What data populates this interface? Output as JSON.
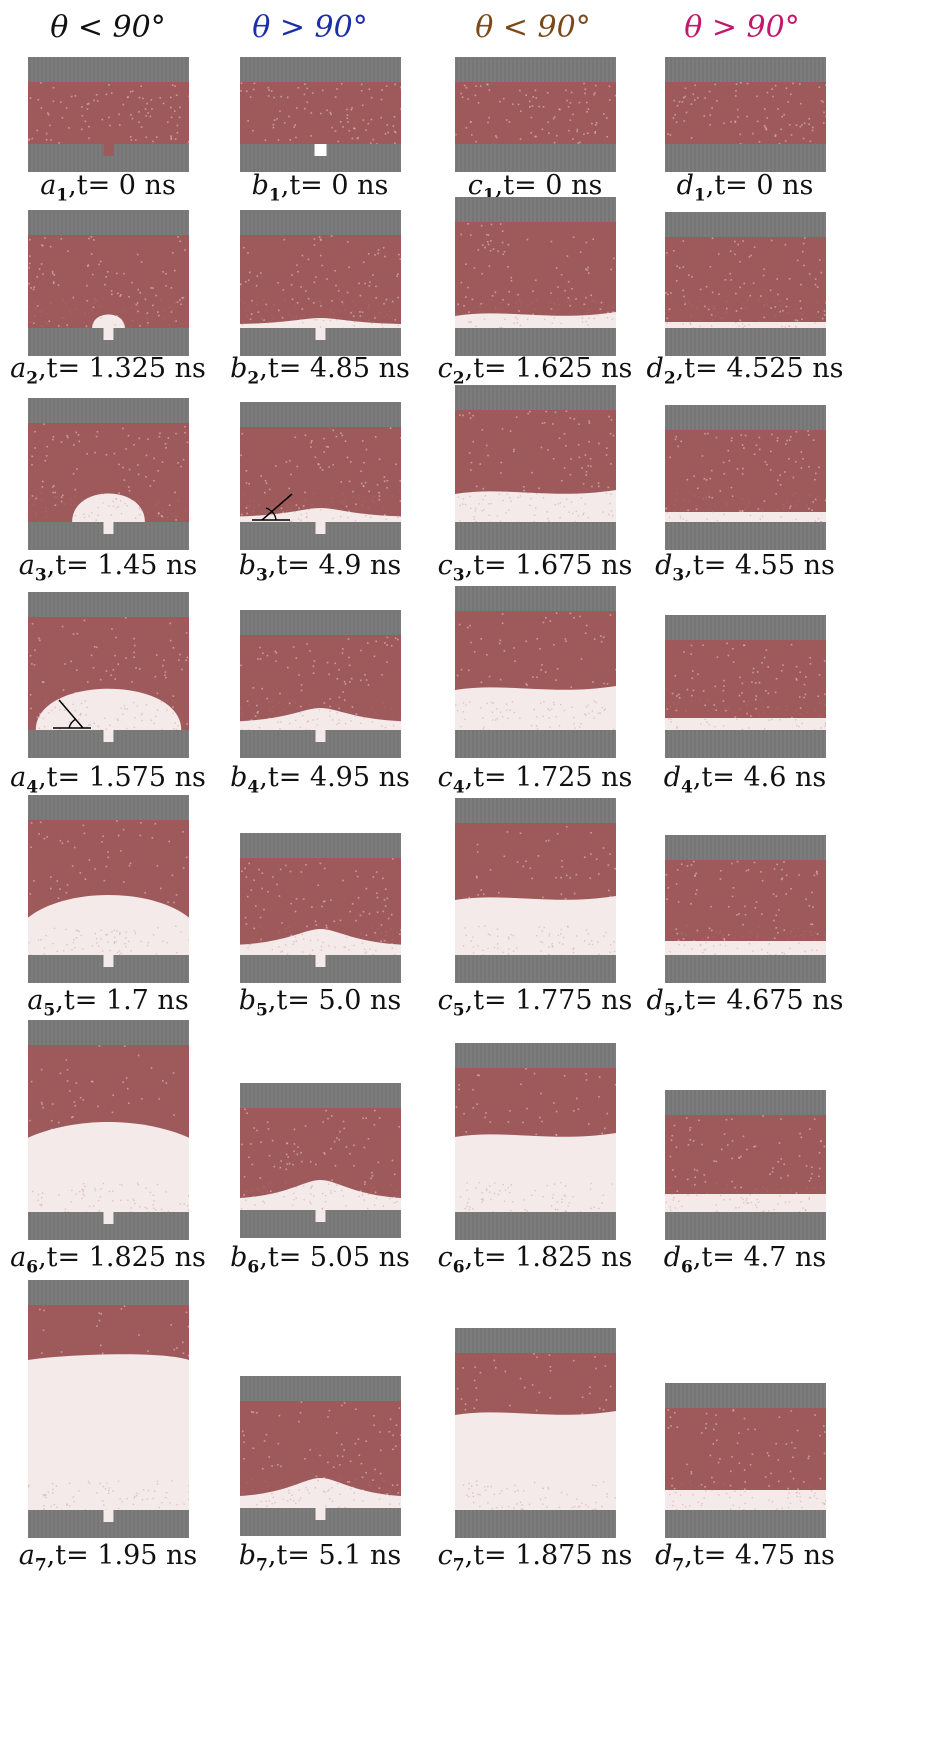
{
  "columns": [
    {
      "header": "θ < 90°",
      "color": "#111111"
    },
    {
      "header": "θ > 90°",
      "color": "#1a2fa8"
    },
    {
      "header": "θ < 90°",
      "color": "#7a4a1a"
    },
    {
      "header": "θ > 90°",
      "color": "#c2186b"
    }
  ],
  "colors": {
    "wall": "#7c7c7c",
    "liquid": "#9e5a5b",
    "vapor": "#f5eaea"
  },
  "panels": [
    {
      "letter": "a",
      "index": "1",
      "time": "t= 0 ns"
    },
    {
      "letter": "b",
      "index": "1",
      "time": "t= 0 ns"
    },
    {
      "letter": "c",
      "index": "1",
      "time": "t= 0 ns"
    },
    {
      "letter": "d",
      "index": "1",
      "time": "t= 0 ns"
    },
    {
      "letter": "a",
      "index": "2",
      "time": "t= 1.325 ns"
    },
    {
      "letter": "b",
      "index": "2",
      "time": "t= 4.85 ns"
    },
    {
      "letter": "c",
      "index": "2",
      "time": "t= 1.625 ns"
    },
    {
      "letter": "d",
      "index": "2",
      "time": "t= 4.525 ns"
    },
    {
      "letter": "a",
      "index": "3",
      "time": "t= 1.45 ns"
    },
    {
      "letter": "b",
      "index": "3",
      "time": "t= 4.9 ns"
    },
    {
      "letter": "c",
      "index": "3",
      "time": "t= 1.675 ns"
    },
    {
      "letter": "d",
      "index": "3",
      "time": "t= 4.55 ns"
    },
    {
      "letter": "a",
      "index": "4",
      "time": "t= 1.575 ns"
    },
    {
      "letter": "b",
      "index": "4",
      "time": "t= 4.95 ns"
    },
    {
      "letter": "c",
      "index": "4",
      "time": "t= 1.725 ns"
    },
    {
      "letter": "d",
      "index": "4",
      "time": "t= 4.6 ns"
    },
    {
      "letter": "a",
      "index": "5",
      "time": "t= 1.7 ns"
    },
    {
      "letter": "b",
      "index": "5",
      "time": "t= 5.0 ns"
    },
    {
      "letter": "c",
      "index": "5",
      "time": "t= 1.775 ns"
    },
    {
      "letter": "d",
      "index": "5",
      "time": "t= 4.675 ns"
    },
    {
      "letter": "a",
      "index": "6",
      "time": "t= 1.825 ns"
    },
    {
      "letter": "b",
      "index": "6",
      "time": "t= 5.05 ns"
    },
    {
      "letter": "c",
      "index": "6",
      "time": "t= 1.825 ns"
    },
    {
      "letter": "d",
      "index": "6",
      "time": "t= 4.7 ns"
    },
    {
      "letter": "a",
      "index": "7",
      "time": "t= 1.95 ns"
    },
    {
      "letter": "b",
      "index": "7",
      "time": "t= 5.1 ns"
    },
    {
      "letter": "c",
      "index": "7",
      "time": "t= 1.875 ns"
    },
    {
      "letter": "d",
      "index": "7",
      "time": "t= 4.75 ns"
    }
  ]
}
